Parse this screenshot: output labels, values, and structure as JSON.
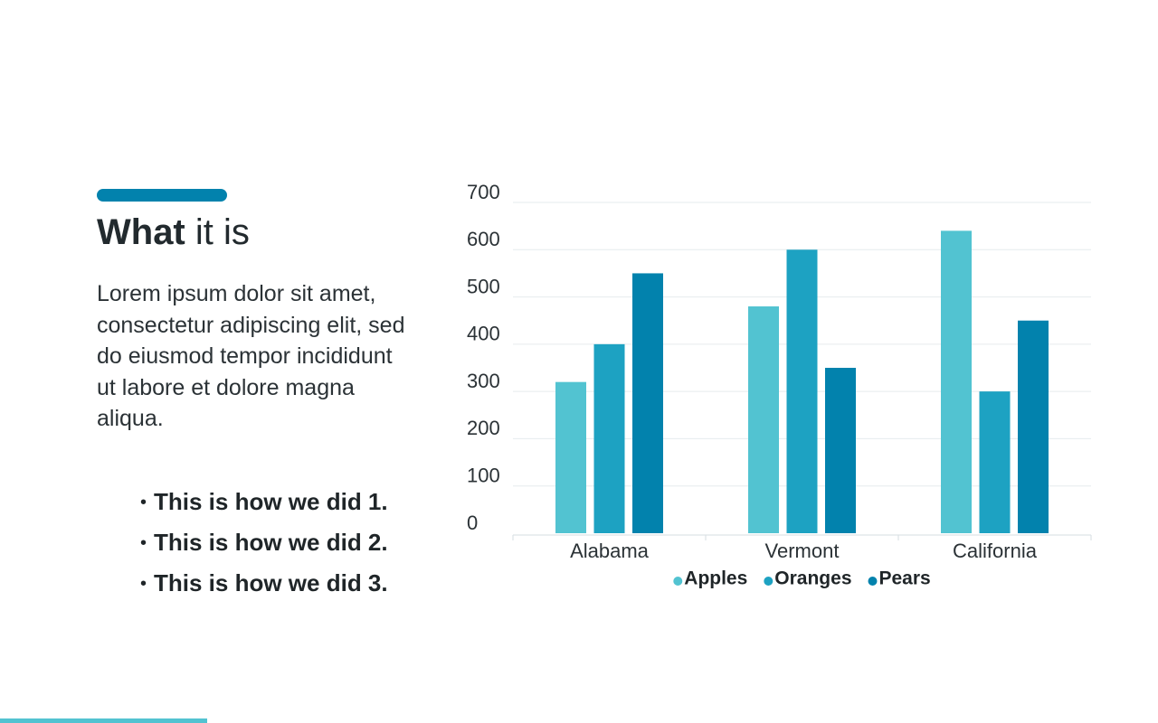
{
  "slide": {
    "heading": {
      "strong": "What",
      "light": "it is"
    },
    "body": "Lorem ipsum dolor sit amet, consectetur adipiscing elit, sed do eiusmod tempor incididunt ut labore et dolore magna aliqua.",
    "bullets": [
      "This is how we did 1.",
      "This is how we did 2.",
      "This is how we did 3."
    ]
  },
  "chart_data": {
    "type": "bar",
    "categories": [
      "Alabama",
      "Vermont",
      "California"
    ],
    "series": [
      {
        "name": "Apples",
        "color": "#52c3d1",
        "values": [
          320,
          480,
          640
        ]
      },
      {
        "name": "Oranges",
        "color": "#1da2c2",
        "values": [
          400,
          600,
          300
        ]
      },
      {
        "name": "Pears",
        "color": "#0282ad",
        "values": [
          550,
          350,
          450
        ]
      }
    ],
    "ylim": [
      0,
      700
    ],
    "yticks": [
      0,
      100,
      200,
      300,
      400,
      500,
      600,
      700
    ],
    "grid": true,
    "legend": "bottom"
  }
}
